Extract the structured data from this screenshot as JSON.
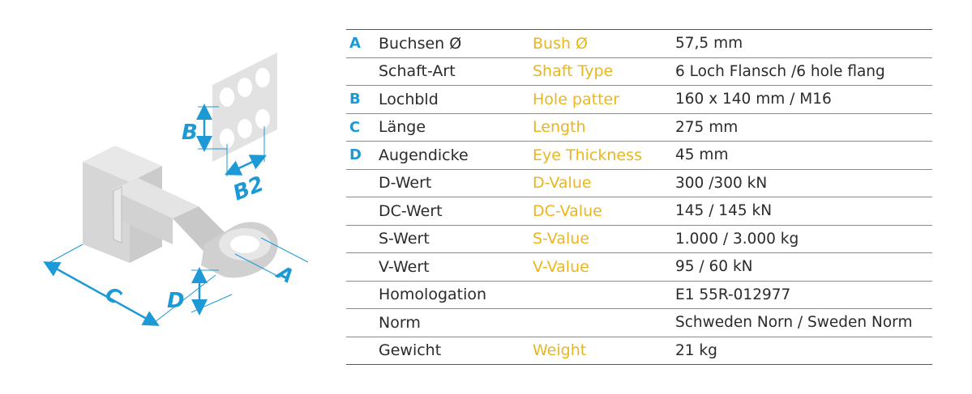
{
  "diagram": {
    "labels": {
      "a": "A",
      "b": "B",
      "b2": "B2",
      "c": "C",
      "d": "D"
    },
    "colors": {
      "accent": "#1d9ad6",
      "part": "#dcdcdc",
      "dark": "#2b2b2b"
    }
  },
  "rows": [
    {
      "letter": "A",
      "de": "Buchsen Ø",
      "en": "Bush Ø",
      "value": "57,5 mm"
    },
    {
      "letter": "",
      "de": "Schaft-Art",
      "en": "Shaft Type",
      "value": "6 Loch Flansch /6 hole flang"
    },
    {
      "letter": "B",
      "de": "Lochbld",
      "en": "Hole patter",
      "value": "160 x 140 mm / M16"
    },
    {
      "letter": "C",
      "de": "Länge",
      "en": "Length",
      "value": "275 mm"
    },
    {
      "letter": "D",
      "de": "Augendicke",
      "en": "Eye Thickness",
      "value": "45 mm"
    },
    {
      "letter": "",
      "de": "D-Wert",
      "en": "D-Value",
      "value": "300 /300  kN"
    },
    {
      "letter": "",
      "de": "DC-Wert",
      "en": "DC-Value",
      "value": "145 / 145  kN"
    },
    {
      "letter": "",
      "de": "S-Wert",
      "en": "S-Value",
      "value": "1.000 / 3.000 kg"
    },
    {
      "letter": "",
      "de": "V-Wert",
      "en": "V-Value",
      "value": "95 / 60  kN"
    },
    {
      "letter": "",
      "de": "Homologation",
      "en": "",
      "value": "E1 55R-012977"
    },
    {
      "letter": "",
      "de": "Norm",
      "en": "",
      "value": "Schweden Norn / Sweden Norm"
    },
    {
      "letter": "",
      "de": "Gewicht",
      "en": "Weight",
      "value": "21 kg"
    }
  ]
}
